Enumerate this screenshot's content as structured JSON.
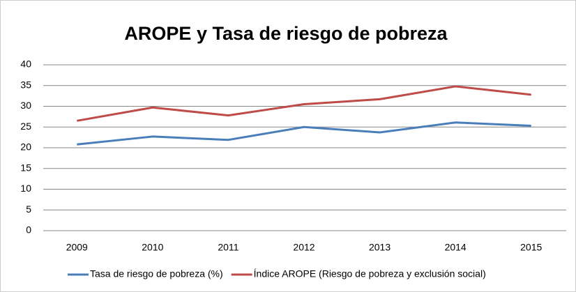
{
  "chart_data": {
    "type": "line",
    "title": "AROPE y Tasa de riesgo de pobreza",
    "categories": [
      "2009",
      "2010",
      "2011",
      "2012",
      "2013",
      "2014",
      "2015"
    ],
    "series": [
      {
        "name": "Tasa de riesgo de pobreza (%)",
        "color": "#4a7ebb",
        "values": [
          20.8,
          22.7,
          21.9,
          25.0,
          23.7,
          26.1,
          25.3
        ]
      },
      {
        "name": "Índice AROPE (Riesgo de pobreza y exclusión social)",
        "color": "#be4b48",
        "values": [
          26.5,
          29.7,
          27.8,
          30.5,
          31.7,
          34.8,
          32.8
        ]
      }
    ],
    "ylim": [
      0,
      40
    ],
    "yticks": [
      0,
      5,
      10,
      15,
      20,
      25,
      30,
      35,
      40
    ],
    "grid": true,
    "legend": "bottom"
  }
}
